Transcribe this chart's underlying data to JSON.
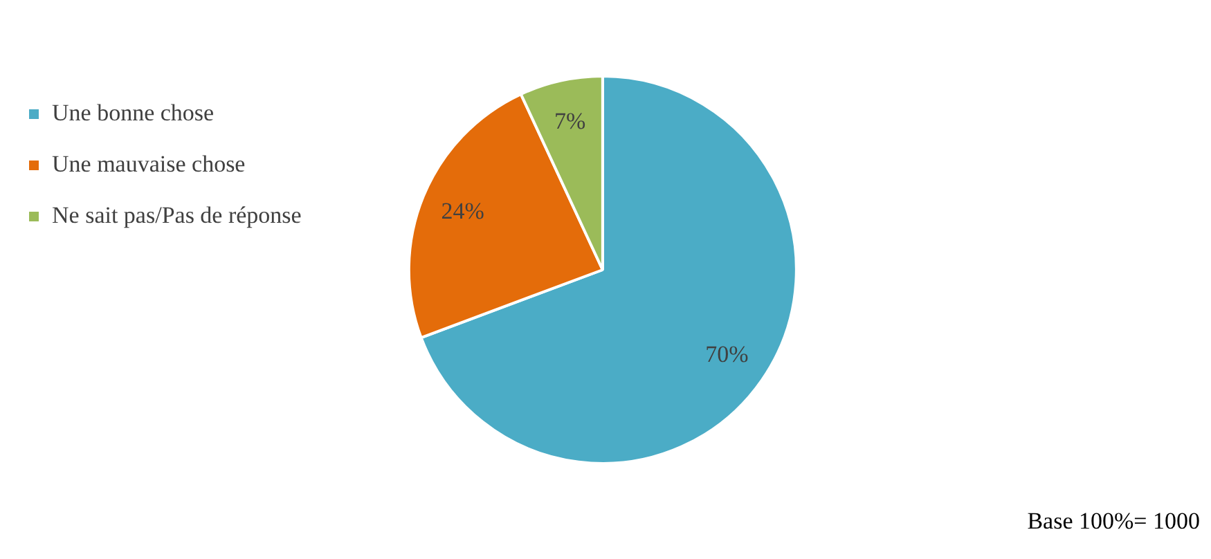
{
  "chart_data": {
    "type": "pie",
    "categories": [
      "Une bonne chose",
      "Une mauvaise chose",
      "Ne sait pas/Pas de réponse"
    ],
    "values": [
      70,
      24,
      7
    ],
    "colors": [
      "#4bacc6",
      "#e46c0a",
      "#9bbb59"
    ],
    "value_labels": [
      "70%",
      "24%",
      "7%"
    ],
    "legend": "top left",
    "annotations": [
      "Base 100%= 1000"
    ]
  }
}
